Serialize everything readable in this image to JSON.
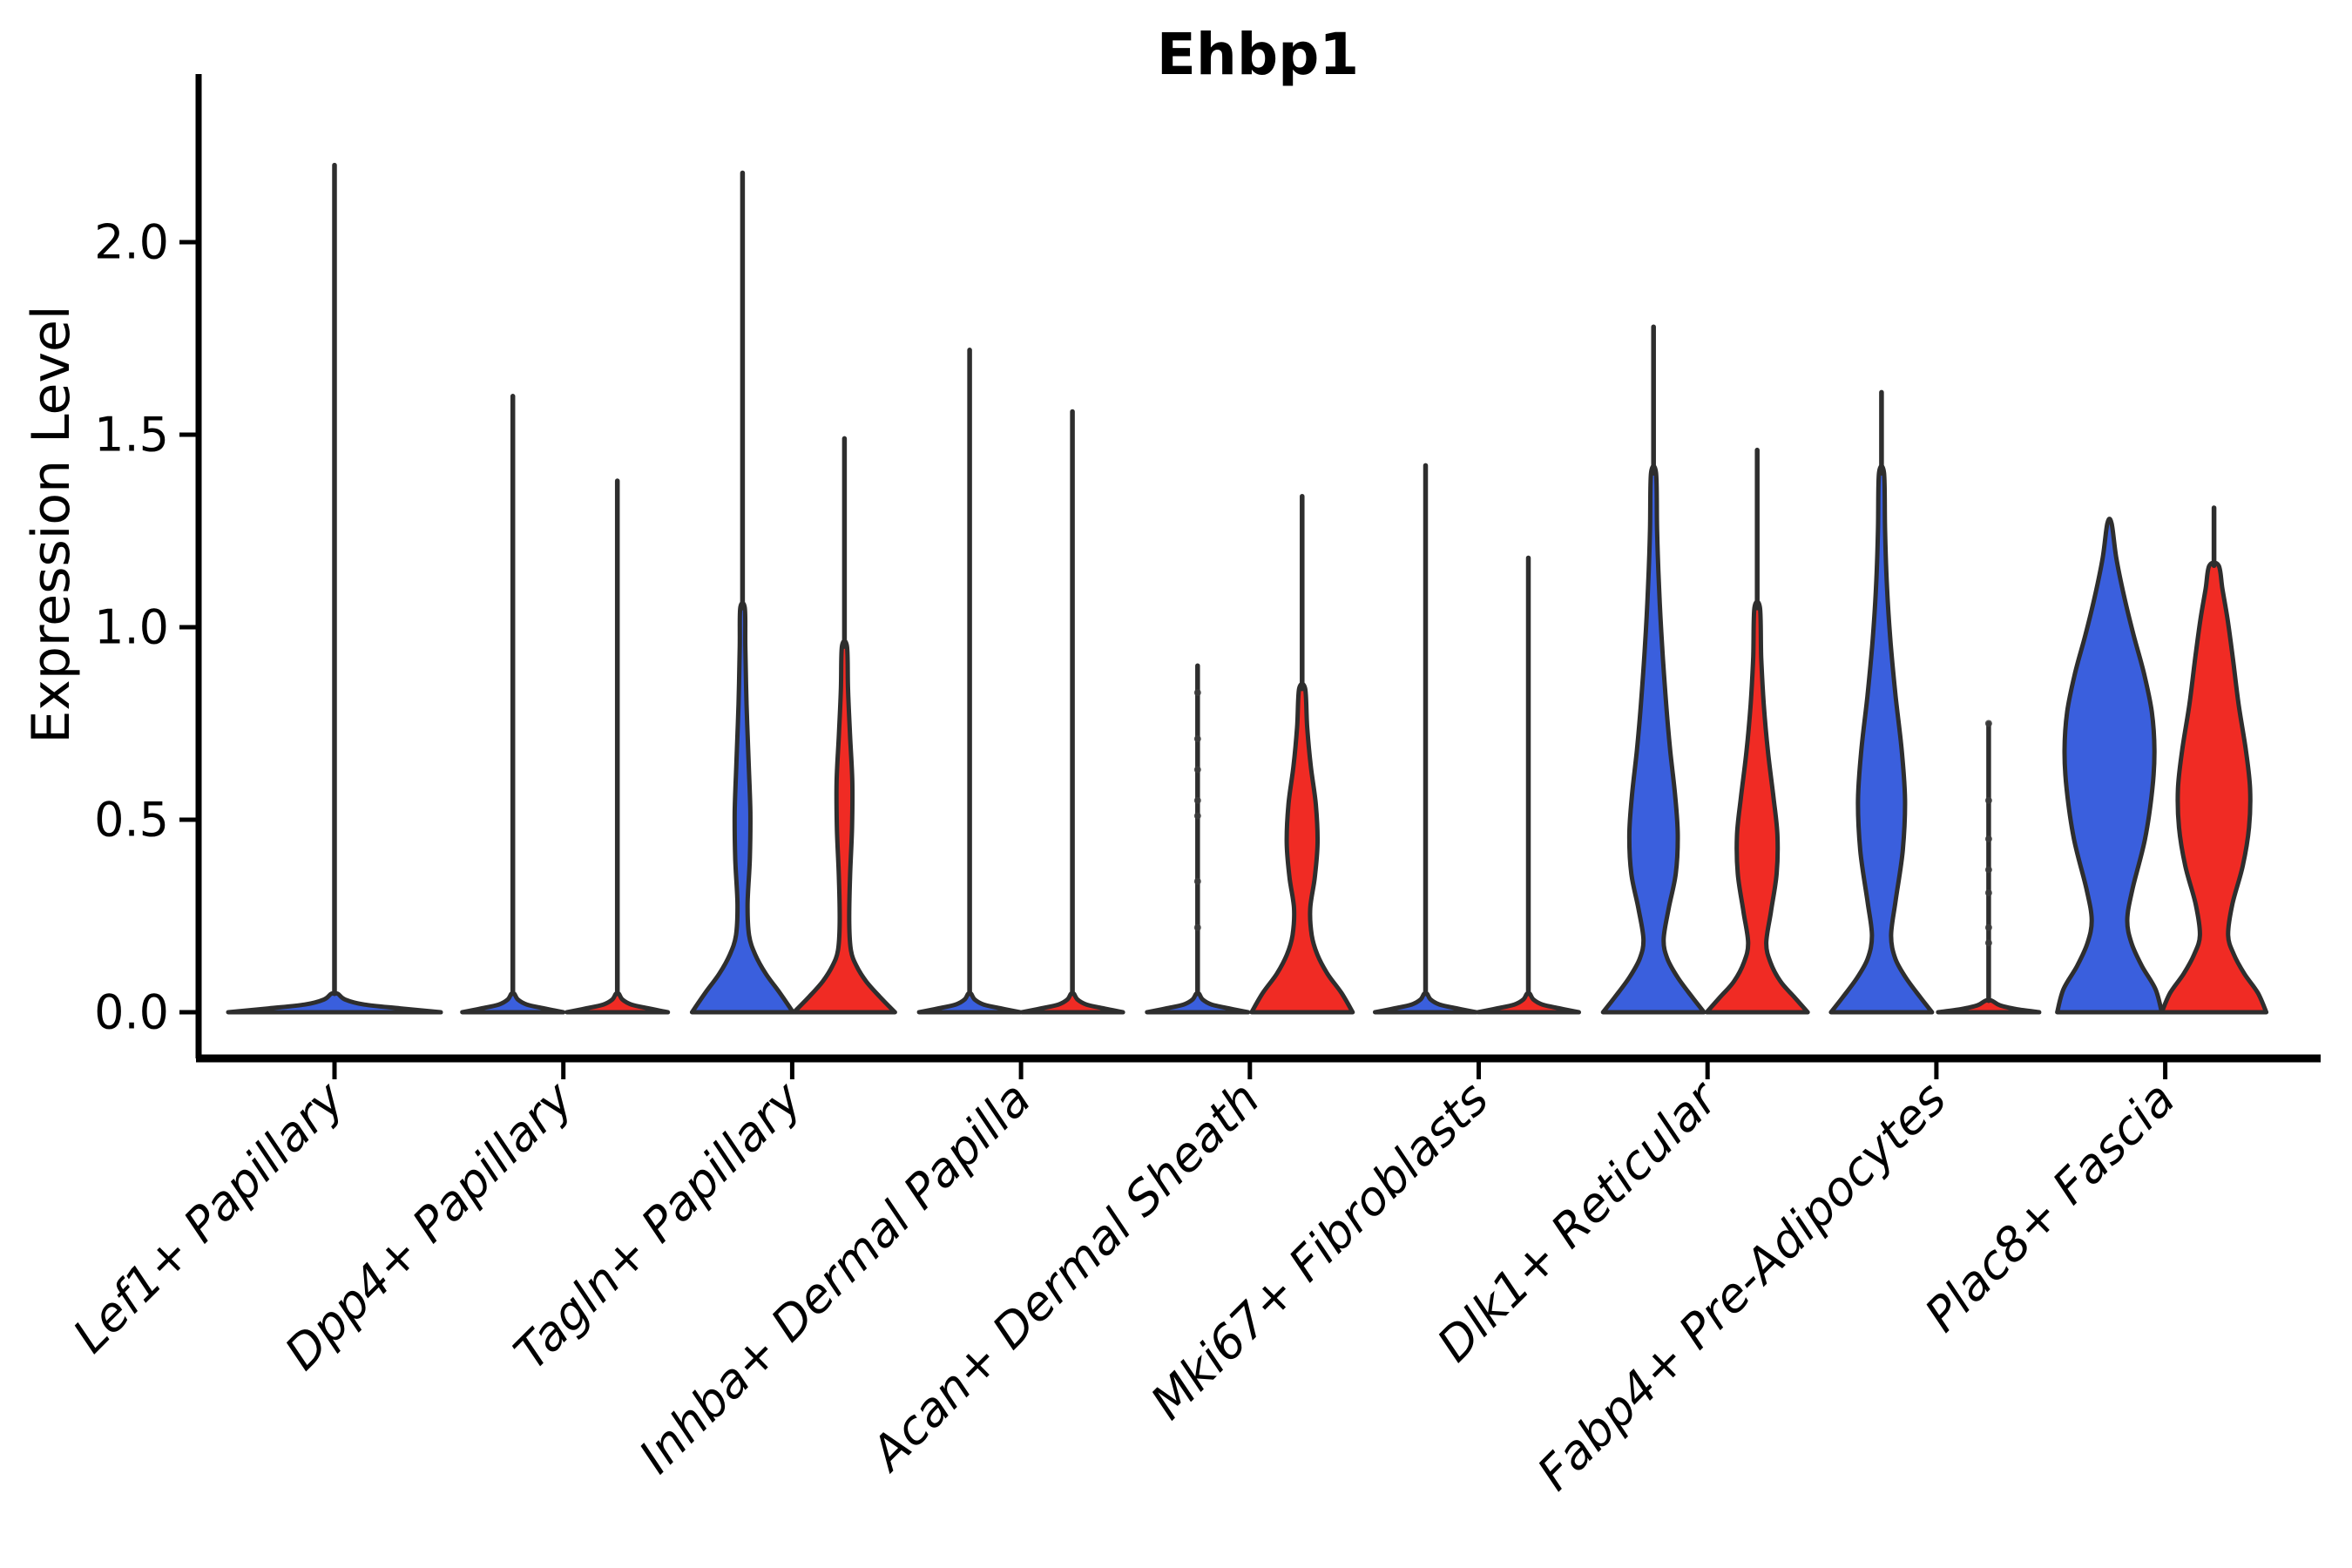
{
  "title": "Ehbp1",
  "ylabel": "Expression Level",
  "colors": {
    "blue": "#3A5FDD",
    "red": "#F02B24",
    "outline": "#2e2e2e",
    "spike": "#2e2e2e",
    "text": "#000000"
  },
  "chart_data": {
    "type": "violin",
    "title": "Ehbp1",
    "xlabel": "",
    "ylabel": "Expression Level",
    "ylim": [
      -0.12,
      2.44
    ],
    "y_ticks": [
      0.0,
      0.5,
      1.0,
      1.5,
      2.0
    ],
    "y_tick_labels": [
      "0.0",
      "0.5",
      "1.0",
      "1.5",
      "2.0"
    ],
    "grid": false,
    "legend": "none",
    "categories": [
      "Lef1+ Papillary",
      "Dpp4+ Papillary",
      "Tagln+ Papillary",
      "Inhba+ Dermal Papilla",
      "Acan+ Dermal Sheath",
      "Mki67+ Fibroblasts",
      "Dlk1+ Reticular",
      "Fabp4+ Pre-Adipocytes",
      "Plac8+ Fascia"
    ],
    "groups": [
      {
        "key": "blue",
        "color": "#3A5FDD"
      },
      {
        "key": "red",
        "color": "#F02B24"
      }
    ],
    "violins": [
      {
        "category": "Lef1+ Papillary",
        "group": "single",
        "color": "#3A5FDD",
        "offset": 0,
        "halfwidth": 122,
        "max": 2.2,
        "profile": [
          [
            0,
            1
          ],
          [
            0.01,
            0.62
          ],
          [
            0.02,
            0.28
          ],
          [
            0.033,
            0.1
          ],
          [
            0.048,
            0.03
          ]
        ],
        "points": []
      },
      {
        "category": "Dpp4+ Papillary",
        "group": "blue",
        "color": "#3A5FDD",
        "offset": -58,
        "halfwidth": 58,
        "max": 1.6,
        "profile": [
          [
            0,
            1
          ],
          [
            0.01,
            0.62
          ],
          [
            0.02,
            0.28
          ],
          [
            0.033,
            0.1
          ],
          [
            0.048,
            0.03
          ]
        ],
        "points": []
      },
      {
        "category": "Dpp4+ Papillary",
        "group": "red",
        "color": "#F02B24",
        "offset": 62,
        "halfwidth": 58,
        "max": 1.38,
        "profile": [
          [
            0,
            1
          ],
          [
            0.01,
            0.62
          ],
          [
            0.02,
            0.28
          ],
          [
            0.033,
            0.1
          ],
          [
            0.048,
            0.03
          ]
        ],
        "points": []
      },
      {
        "category": "Tagln+ Papillary",
        "group": "blue",
        "color": "#3A5FDD",
        "offset": -57,
        "halfwidth": 58,
        "max": 2.18,
        "profile": [
          [
            0,
            1
          ],
          [
            0.05,
            0.74
          ],
          [
            0.1,
            0.46
          ],
          [
            0.15,
            0.25
          ],
          [
            0.2,
            0.13
          ],
          [
            0.28,
            0.1
          ],
          [
            0.4,
            0.145
          ],
          [
            0.52,
            0.155
          ],
          [
            0.65,
            0.12
          ],
          [
            0.8,
            0.08
          ],
          [
            0.95,
            0.055
          ],
          [
            1.05,
            0.045
          ]
        ],
        "points": []
      },
      {
        "category": "Tagln+ Papillary",
        "group": "red",
        "color": "#F02B24",
        "offset": 60,
        "halfwidth": 58,
        "max": 1.49,
        "profile": [
          [
            0,
            1
          ],
          [
            0.04,
            0.7
          ],
          [
            0.08,
            0.43
          ],
          [
            0.12,
            0.24
          ],
          [
            0.16,
            0.13
          ],
          [
            0.23,
            0.095
          ],
          [
            0.35,
            0.11
          ],
          [
            0.48,
            0.15
          ],
          [
            0.6,
            0.155
          ],
          [
            0.72,
            0.11
          ],
          [
            0.84,
            0.07
          ],
          [
            0.95,
            0.05
          ]
        ],
        "points": []
      },
      {
        "category": "Inhba+ Dermal Papilla",
        "group": "blue",
        "color": "#3A5FDD",
        "offset": -59,
        "halfwidth": 58,
        "max": 1.72,
        "profile": [
          [
            0,
            1
          ],
          [
            0.01,
            0.62
          ],
          [
            0.02,
            0.28
          ],
          [
            0.033,
            0.1
          ],
          [
            0.048,
            0.03
          ]
        ],
        "points": []
      },
      {
        "category": "Inhba+ Dermal Papilla",
        "group": "red",
        "color": "#F02B24",
        "offset": 59,
        "halfwidth": 58,
        "max": 1.56,
        "profile": [
          [
            0,
            1
          ],
          [
            0.01,
            0.62
          ],
          [
            0.02,
            0.28
          ],
          [
            0.033,
            0.1
          ],
          [
            0.048,
            0.03
          ]
        ],
        "points": []
      },
      {
        "category": "Acan+ Dermal Sheath",
        "group": "blue",
        "color": "#3A5FDD",
        "offset": -60,
        "halfwidth": 58,
        "max": 0.9,
        "profile": [
          [
            0,
            1
          ],
          [
            0.01,
            0.62
          ],
          [
            0.02,
            0.28
          ],
          [
            0.033,
            0.1
          ],
          [
            0.048,
            0.03
          ]
        ],
        "points": [
          0.22,
          0.34,
          0.51,
          0.55,
          0.63,
          0.71,
          0.83
        ]
      },
      {
        "category": "Acan+ Dermal Sheath",
        "group": "red",
        "color": "#F02B24",
        "offset": 60,
        "halfwidth": 58,
        "max": 1.34,
        "profile": [
          [
            0,
            1
          ],
          [
            0.05,
            0.78
          ],
          [
            0.1,
            0.5
          ],
          [
            0.15,
            0.3
          ],
          [
            0.2,
            0.19
          ],
          [
            0.27,
            0.16
          ],
          [
            0.35,
            0.25
          ],
          [
            0.44,
            0.305
          ],
          [
            0.54,
            0.27
          ],
          [
            0.64,
            0.17
          ],
          [
            0.74,
            0.1
          ],
          [
            0.84,
            0.06
          ]
        ],
        "points": []
      },
      {
        "category": "Mki67+ Fibroblasts",
        "group": "blue",
        "color": "#3A5FDD",
        "offset": -61,
        "halfwidth": 58,
        "max": 1.42,
        "profile": [
          [
            0,
            1
          ],
          [
            0.01,
            0.62
          ],
          [
            0.02,
            0.28
          ],
          [
            0.033,
            0.1
          ],
          [
            0.048,
            0.03
          ]
        ],
        "points": []
      },
      {
        "category": "Mki67+ Fibroblasts",
        "group": "red",
        "color": "#F02B24",
        "offset": 57,
        "halfwidth": 58,
        "max": 1.18,
        "profile": [
          [
            0,
            1
          ],
          [
            0.01,
            0.62
          ],
          [
            0.02,
            0.28
          ],
          [
            0.033,
            0.1
          ],
          [
            0.048,
            0.03
          ]
        ],
        "points": []
      },
      {
        "category": "Dlk1+ Reticular",
        "group": "blue",
        "color": "#3A5FDD",
        "offset": -62,
        "halfwidth": 58,
        "max": 1.78,
        "profile": [
          [
            0,
            1
          ],
          [
            0.04,
            0.76
          ],
          [
            0.09,
            0.48
          ],
          [
            0.14,
            0.27
          ],
          [
            0.19,
            0.2
          ],
          [
            0.27,
            0.3
          ],
          [
            0.36,
            0.44
          ],
          [
            0.46,
            0.48
          ],
          [
            0.56,
            0.43
          ],
          [
            0.68,
            0.33
          ],
          [
            0.8,
            0.25
          ],
          [
            0.95,
            0.17
          ],
          [
            1.1,
            0.11
          ],
          [
            1.25,
            0.07
          ],
          [
            1.4,
            0.05
          ]
        ],
        "points": []
      },
      {
        "category": "Dlk1+ Reticular",
        "group": "red",
        "color": "#F02B24",
        "offset": 57,
        "halfwidth": 58,
        "max": 1.46,
        "profile": [
          [
            0,
            1
          ],
          [
            0.04,
            0.73
          ],
          [
            0.08,
            0.46
          ],
          [
            0.13,
            0.26
          ],
          [
            0.18,
            0.18
          ],
          [
            0.26,
            0.27
          ],
          [
            0.36,
            0.385
          ],
          [
            0.46,
            0.4
          ],
          [
            0.56,
            0.32
          ],
          [
            0.68,
            0.21
          ],
          [
            0.8,
            0.13
          ],
          [
            0.92,
            0.08
          ],
          [
            1.05,
            0.055
          ]
        ],
        "points": []
      },
      {
        "category": "Fabp4+ Pre-Adipocytes",
        "group": "blue",
        "color": "#3A5FDD",
        "offset": -63,
        "halfwidth": 58,
        "max": 1.61,
        "profile": [
          [
            0,
            1
          ],
          [
            0.04,
            0.76
          ],
          [
            0.09,
            0.48
          ],
          [
            0.14,
            0.27
          ],
          [
            0.2,
            0.19
          ],
          [
            0.29,
            0.28
          ],
          [
            0.42,
            0.42
          ],
          [
            0.55,
            0.465
          ],
          [
            0.68,
            0.4
          ],
          [
            0.82,
            0.28
          ],
          [
            0.96,
            0.18
          ],
          [
            1.1,
            0.11
          ],
          [
            1.25,
            0.07
          ],
          [
            1.4,
            0.05
          ]
        ],
        "points": []
      },
      {
        "category": "Fabp4+ Pre-Adipocytes",
        "group": "red",
        "color": "#F02B24",
        "offset": 60,
        "halfwidth": 58,
        "max": 0.75,
        "profile": [
          [
            0,
            1
          ],
          [
            0.008,
            0.55
          ],
          [
            0.018,
            0.22
          ],
          [
            0.03,
            0.06
          ]
        ],
        "points": [
          0.18,
          0.22,
          0.31,
          0.37,
          0.45,
          0.55,
          0.75
        ]
      },
      {
        "category": "Plac8+ Fascia",
        "group": "blue",
        "color": "#3A5FDD",
        "offset": -64,
        "halfwidth": 60,
        "max": 1.27,
        "profile": [
          [
            0,
            1
          ],
          [
            0.06,
            0.88
          ],
          [
            0.12,
            0.62
          ],
          [
            0.18,
            0.42
          ],
          [
            0.24,
            0.34
          ],
          [
            0.32,
            0.44
          ],
          [
            0.45,
            0.68
          ],
          [
            0.58,
            0.82
          ],
          [
            0.68,
            0.86
          ],
          [
            0.78,
            0.81
          ],
          [
            0.88,
            0.66
          ],
          [
            0.98,
            0.46
          ],
          [
            1.08,
            0.28
          ],
          [
            1.18,
            0.13
          ],
          [
            1.27,
            0.04
          ]
        ],
        "points": []
      },
      {
        "category": "Plac8+ Fascia",
        "group": "red",
        "color": "#F02B24",
        "offset": 56,
        "halfwidth": 60,
        "max": 1.31,
        "profile": [
          [
            0,
            1
          ],
          [
            0.05,
            0.84
          ],
          [
            0.1,
            0.58
          ],
          [
            0.15,
            0.38
          ],
          [
            0.2,
            0.27
          ],
          [
            0.28,
            0.35
          ],
          [
            0.38,
            0.55
          ],
          [
            0.48,
            0.67
          ],
          [
            0.58,
            0.69
          ],
          [
            0.68,
            0.61
          ],
          [
            0.8,
            0.47
          ],
          [
            0.92,
            0.36
          ],
          [
            1.02,
            0.26
          ],
          [
            1.1,
            0.16
          ],
          [
            1.16,
            0.09
          ]
        ],
        "points": []
      }
    ]
  }
}
